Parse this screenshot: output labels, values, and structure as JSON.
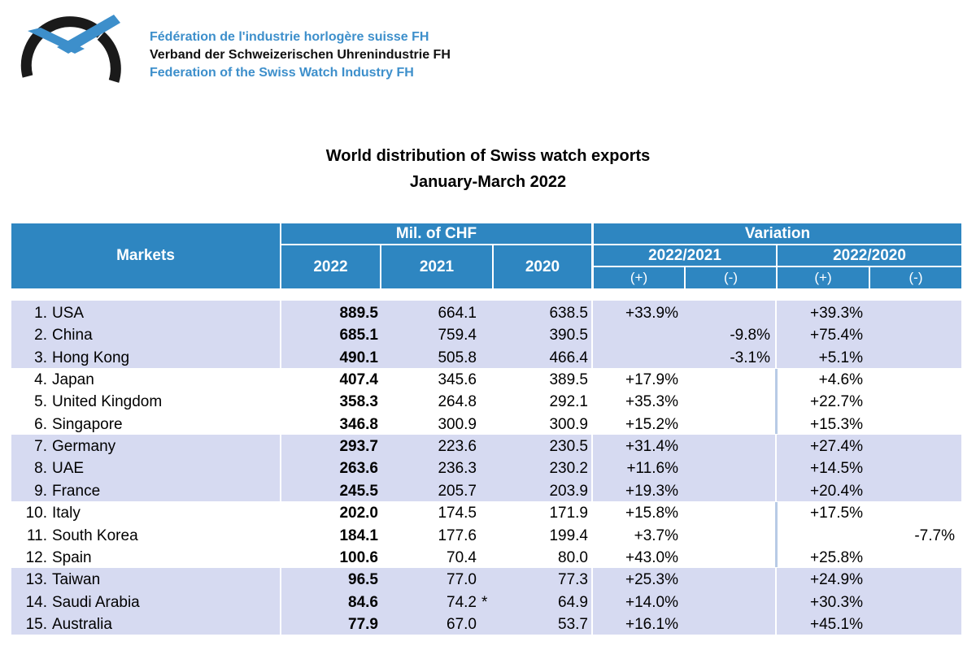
{
  "header": {
    "org_fr": "Fédération de l'industrie horlogère suisse FH",
    "org_de": "Verband der Schweizerischen Uhrenindustrie FH",
    "org_en": "Federation of the Swiss Watch Industry FH"
  },
  "title": {
    "line1": "World distribution of Swiss watch exports",
    "line2": "January-March 2022"
  },
  "table": {
    "col_markets": "Markets",
    "col_mil": "Mil. of CHF",
    "col_variation": "Variation",
    "years": [
      "2022",
      "2021",
      "2020"
    ],
    "var_periods": [
      "2022/2021",
      "2022/2020"
    ],
    "plus": "(+)",
    "minus": "(-)",
    "rows": [
      {
        "rank": "1.",
        "market": "USA",
        "v2022": "889.5",
        "v2021": "664.1",
        "v2020": "638.5",
        "v1p": "+33.9%",
        "v1m": "",
        "v2p": "+39.3%",
        "v2m": "",
        "mark": ""
      },
      {
        "rank": "2.",
        "market": "China",
        "v2022": "685.1",
        "v2021": "759.4",
        "v2020": "390.5",
        "v1p": "",
        "v1m": "-9.8%",
        "v2p": "+75.4%",
        "v2m": "",
        "mark": ""
      },
      {
        "rank": "3.",
        "market": "Hong Kong",
        "v2022": "490.1",
        "v2021": "505.8",
        "v2020": "466.4",
        "v1p": "",
        "v1m": "-3.1%",
        "v2p": "+5.1%",
        "v2m": "",
        "mark": ""
      },
      {
        "rank": "4.",
        "market": "Japan",
        "v2022": "407.4",
        "v2021": "345.6",
        "v2020": "389.5",
        "v1p": "+17.9%",
        "v1m": "",
        "v2p": "+4.6%",
        "v2m": "",
        "mark": ""
      },
      {
        "rank": "5.",
        "market": "United Kingdom",
        "v2022": "358.3",
        "v2021": "264.8",
        "v2020": "292.1",
        "v1p": "+35.3%",
        "v1m": "",
        "v2p": "+22.7%",
        "v2m": "",
        "mark": ""
      },
      {
        "rank": "6.",
        "market": "Singapore",
        "v2022": "346.8",
        "v2021": "300.9",
        "v2020": "300.9",
        "v1p": "+15.2%",
        "v1m": "",
        "v2p": "+15.3%",
        "v2m": "",
        "mark": ""
      },
      {
        "rank": "7.",
        "market": "Germany",
        "v2022": "293.7",
        "v2021": "223.6",
        "v2020": "230.5",
        "v1p": "+31.4%",
        "v1m": "",
        "v2p": "+27.4%",
        "v2m": "",
        "mark": ""
      },
      {
        "rank": "8.",
        "market": "UAE",
        "v2022": "263.6",
        "v2021": "236.3",
        "v2020": "230.2",
        "v1p": "+11.6%",
        "v1m": "",
        "v2p": "+14.5%",
        "v2m": "",
        "mark": ""
      },
      {
        "rank": "9.",
        "market": "France",
        "v2022": "245.5",
        "v2021": "205.7",
        "v2020": "203.9",
        "v1p": "+19.3%",
        "v1m": "",
        "v2p": "+20.4%",
        "v2m": "",
        "mark": ""
      },
      {
        "rank": "10.",
        "market": "Italy",
        "v2022": "202.0",
        "v2021": "174.5",
        "v2020": "171.9",
        "v1p": "+15.8%",
        "v1m": "",
        "v2p": "+17.5%",
        "v2m": "",
        "mark": ""
      },
      {
        "rank": "11.",
        "market": "South Korea",
        "v2022": "184.1",
        "v2021": "177.6",
        "v2020": "199.4",
        "v1p": "+3.7%",
        "v1m": "",
        "v2p": "",
        "v2m": "-7.7%",
        "mark": ""
      },
      {
        "rank": "12.",
        "market": "Spain",
        "v2022": "100.6",
        "v2021": "70.4",
        "v2020": "80.0",
        "v1p": "+43.0%",
        "v1m": "",
        "v2p": "+25.8%",
        "v2m": "",
        "mark": ""
      },
      {
        "rank": "13.",
        "market": "Taiwan",
        "v2022": "96.5",
        "v2021": "77.0",
        "v2020": "77.3",
        "v1p": "+25.3%",
        "v1m": "",
        "v2p": "+24.9%",
        "v2m": "",
        "mark": ""
      },
      {
        "rank": "14.",
        "market": "Saudi Arabia",
        "v2022": "84.6",
        "v2021": "74.2",
        "v2020": "64.9",
        "v1p": "+14.0%",
        "v1m": "",
        "v2p": "+30.3%",
        "v2m": "",
        "mark": "*"
      },
      {
        "rank": "15.",
        "market": "Australia",
        "v2022": "77.9",
        "v2021": "67.0",
        "v2020": "53.7",
        "v1p": "+16.1%",
        "v1m": "",
        "v2p": "+45.1%",
        "v2m": "",
        "mark": ""
      }
    ]
  }
}
